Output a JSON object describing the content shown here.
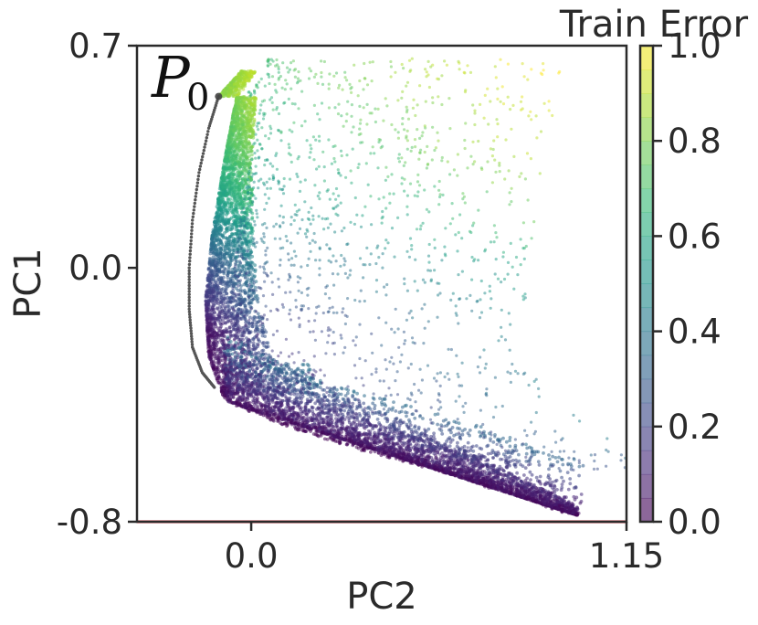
{
  "chart_data": {
    "type": "scatter",
    "xlabel": "PC2",
    "ylabel": "PC1",
    "xlim": [
      -0.35,
      1.15
    ],
    "ylim": [
      -0.8,
      0.7
    ],
    "x_ticks": [
      0.0,
      1.15
    ],
    "x_tick_labels": [
      "0.0",
      "1.15"
    ],
    "y_ticks": [
      0.7,
      0.0,
      -0.8
    ],
    "y_tick_labels": [
      "0.7",
      "0.0",
      "-0.8"
    ],
    "colorbar": {
      "title": "Train Error",
      "range": [
        0.0,
        1.0
      ],
      "ticks": [
        0.0,
        0.2,
        0.4,
        0.6,
        0.8,
        1.0
      ],
      "tick_labels": [
        "0.0",
        "0.2",
        "0.4",
        "0.6",
        "0.8",
        "1.0"
      ],
      "colormap": "viridis",
      "steps": 20
    },
    "annotation": {
      "label": "P",
      "subscript": "0",
      "x": -0.1,
      "y": 0.54
    },
    "trajectory": {
      "color": "#555555",
      "points": [
        [
          -0.1,
          0.54
        ],
        [
          -0.13,
          0.44
        ],
        [
          -0.16,
          0.3
        ],
        [
          -0.18,
          0.15
        ],
        [
          -0.19,
          0.0
        ],
        [
          -0.19,
          -0.13
        ],
        [
          -0.18,
          -0.25
        ],
        [
          -0.15,
          -0.33
        ],
        [
          -0.11,
          -0.38
        ]
      ]
    },
    "reference_line": {
      "y": -0.8,
      "color": "#e0141e"
    },
    "cloud": {
      "description_points": "dense scatter of sampled parameter points colored by train error",
      "boundary": [
        [
          -0.1,
          0.54
        ],
        [
          -0.03,
          0.62
        ],
        [
          -0.08,
          0.35
        ],
        [
          -0.12,
          0.1
        ],
        [
          -0.14,
          -0.1
        ],
        [
          -0.13,
          -0.28
        ],
        [
          -0.08,
          -0.42
        ],
        [
          0.1,
          -0.5
        ],
        [
          0.35,
          -0.58
        ],
        [
          0.6,
          -0.65
        ],
        [
          0.8,
          -0.72
        ],
        [
          0.95,
          -0.77
        ],
        [
          1.0,
          -0.78
        ]
      ],
      "error_by_pc1": [
        [
          0.62,
          0.85
        ],
        [
          0.4,
          0.72
        ],
        [
          0.2,
          0.55
        ],
        [
          0.0,
          0.25
        ],
        [
          -0.2,
          0.05
        ],
        [
          -0.4,
          0.0
        ],
        [
          -0.78,
          0.0
        ]
      ]
    },
    "colors": {
      "axis": "#2a2a2a",
      "marker_alpha": 0.55
    }
  }
}
